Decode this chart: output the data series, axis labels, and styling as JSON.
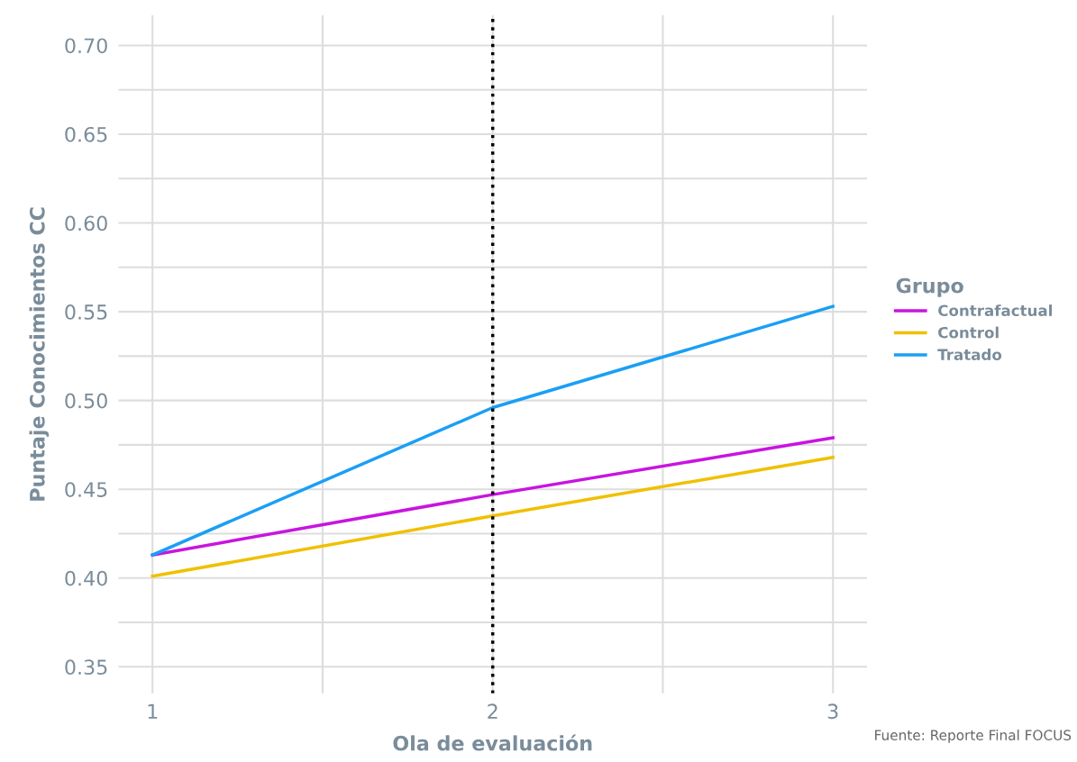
{
  "chart_data": {
    "type": "line",
    "xlabel": "Ola de evaluación",
    "ylabel": "Puntaje Conocimientos CC",
    "legend_title": "Grupo",
    "x": [
      1,
      2,
      3
    ],
    "series": [
      {
        "name": "Contrafactual",
        "color": "#c814e0",
        "values": [
          0.413,
          0.447,
          0.479
        ]
      },
      {
        "name": "Control",
        "color": "#f0c000",
        "values": [
          0.401,
          0.435,
          0.468
        ]
      },
      {
        "name": "Tratado",
        "color": "#1a9ff5",
        "values": [
          0.413,
          0.496,
          0.553
        ]
      }
    ],
    "xlim": [
      0.9,
      3.1
    ],
    "ylim": [
      0.335,
      0.717
    ],
    "xticks": [
      1,
      {
        "value": 1.5,
        "label": null
      },
      2,
      {
        "value": 2.5,
        "label": null
      },
      3
    ],
    "yticks": [
      0.35,
      {
        "value": 0.375,
        "label": null
      },
      {
        "value": 0.4,
        "label": "0.40"
      },
      {
        "value": 0.425,
        "label": null
      },
      0.45,
      {
        "value": 0.475,
        "label": null
      },
      {
        "value": 0.5,
        "label": "0.50"
      },
      {
        "value": 0.525,
        "label": null
      },
      0.55,
      {
        "value": 0.575,
        "label": null
      },
      {
        "value": 0.6,
        "label": "0.60"
      },
      {
        "value": 0.625,
        "label": null
      },
      0.65,
      {
        "value": 0.675,
        "label": null
      },
      {
        "value": 0.7,
        "label": "0.70"
      }
    ],
    "ref_lines": [
      {
        "axis": "x",
        "value": 2,
        "color": "#000000",
        "line_style": "dotted"
      }
    ],
    "annotations": [
      "Fuente: Reporte Final FOCUS"
    ],
    "grid": true,
    "legend": "right",
    "marker": "none",
    "line_style": "solid"
  }
}
